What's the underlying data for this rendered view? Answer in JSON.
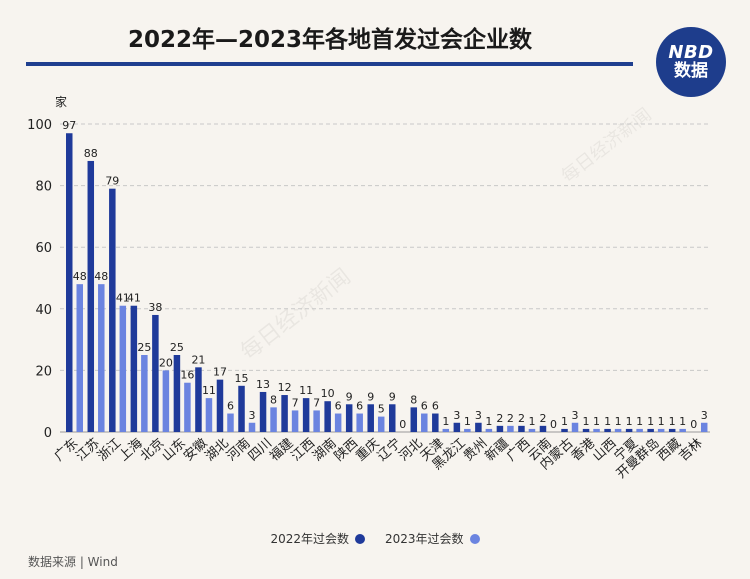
{
  "title": "2022年—2023年各地首发过会企业数",
  "logo": {
    "line1": "NBD",
    "line2": "数据"
  },
  "watermark": "每日经济新闻",
  "source": "数据来源 | Wind",
  "colors": {
    "series1": "#1f3a9a",
    "series2": "#6b84e0",
    "grid": "#c8c8c8"
  },
  "chart_data": {
    "type": "bar",
    "ylabel": "家",
    "ylim": [
      0,
      100
    ],
    "yticks": [
      0,
      20,
      40,
      60,
      80,
      100
    ],
    "grid": true,
    "legend_position": "bottom",
    "categories": [
      "广东",
      "江苏",
      "浙江",
      "上海",
      "北京",
      "山东",
      "安徽",
      "湖北",
      "河南",
      "四川",
      "福建",
      "江西",
      "湖南",
      "陕西",
      "重庆",
      "辽宁",
      "河北",
      "天津",
      "黑龙江",
      "贵州",
      "新疆",
      "广西",
      "云南",
      "内蒙古",
      "香港",
      "山西",
      "宁夏",
      "开曼群岛",
      "西藏",
      "吉林"
    ],
    "series": [
      {
        "name": "2022年过会数",
        "values": [
          97,
          88,
          79,
          41,
          38,
          25,
          21,
          17,
          15,
          13,
          12,
          11,
          10,
          9,
          9,
          9,
          8,
          6,
          3,
          3,
          2,
          2,
          2,
          1,
          1,
          1,
          1,
          1,
          1,
          0
        ]
      },
      {
        "name": "2023年过会数",
        "values": [
          48,
          48,
          41,
          25,
          20,
          16,
          11,
          6,
          3,
          8,
          7,
          7,
          6,
          6,
          5,
          0,
          6,
          1,
          1,
          1,
          2,
          1,
          0,
          3,
          1,
          1,
          1,
          1,
          1,
          3
        ]
      }
    ]
  }
}
